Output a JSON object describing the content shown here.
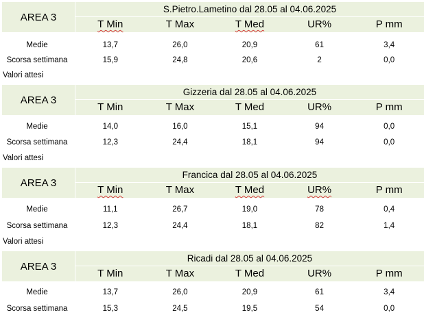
{
  "headers": [
    "T Min",
    "T Max",
    "T Med",
    "UR%",
    "P mm"
  ],
  "labels": {
    "medie": "Medie",
    "scorsa": "Scorsa settimana",
    "attesi": "Valori attesi"
  },
  "colors": {
    "header_bg": "#ebf1de",
    "spellcheck_underline": "#d43a3a"
  },
  "blocks": [
    {
      "area": "AREA 3",
      "title": "S.Pietro.Lametino dal 28.05 al 04.06.2025",
      "medie": [
        "13,7",
        "26,0",
        "20,9",
        "61",
        "3,4"
      ],
      "scorsa": [
        "15,9",
        "24,8",
        "20,6",
        "2",
        "0,0"
      ]
    },
    {
      "area": "AREA 3",
      "title": "Gizzeria dal 28.05 al 04.06.2025",
      "medie": [
        "14,0",
        "16,0",
        "15,1",
        "94",
        "0,0"
      ],
      "scorsa": [
        "12,3",
        "24,4",
        "18,1",
        "94",
        "0,0"
      ]
    },
    {
      "area": "AREA 3",
      "title": "Francica dal 28.05 al 04.06.2025",
      "medie": [
        "11,1",
        "26,7",
        "19,0",
        "78",
        "0,4"
      ],
      "scorsa": [
        "12,3",
        "24,4",
        "18,1",
        "82",
        "1,4"
      ]
    },
    {
      "area": "AREA 3",
      "title": "Ricadi  dal 28.05 al 04.06.2025",
      "medie": [
        "13,7",
        "26,0",
        "20,9",
        "61",
        "3,4"
      ],
      "scorsa": [
        "15,3",
        "24,5",
        "19,5",
        "54",
        "0,0"
      ]
    }
  ]
}
